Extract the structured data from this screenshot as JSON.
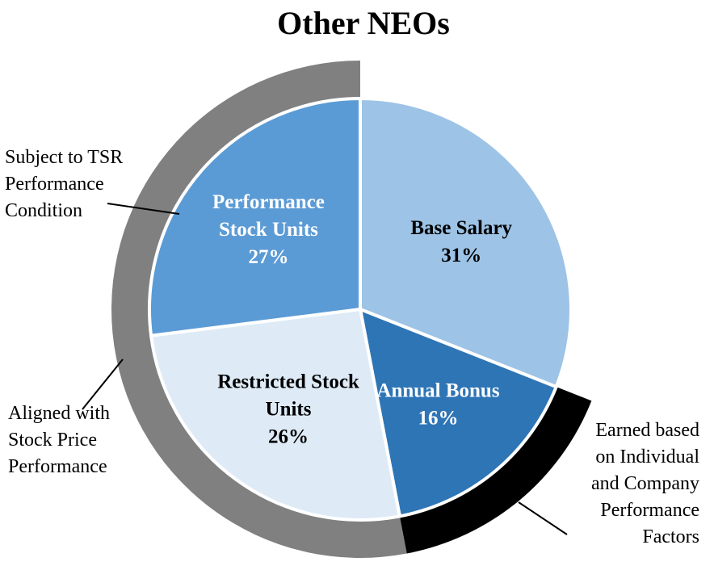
{
  "chart_data": {
    "type": "pie",
    "title": "Other NEOs",
    "slices": [
      {
        "label_lines": [
          "Base Salary",
          "31%"
        ],
        "value": 31,
        "color": "#9dc3e6",
        "text_color": "#000000"
      },
      {
        "label_lines": [
          "Annual Bonus",
          "16%"
        ],
        "value": 16,
        "color": "#2e75b6",
        "text_color": "#ffffff"
      },
      {
        "label_lines": [
          "Restricted Stock",
          "Units",
          "26%"
        ],
        "value": 26,
        "color": "#deebf7",
        "text_color": "#000000"
      },
      {
        "label_lines": [
          "Performance",
          "Stock Units",
          "27%"
        ],
        "value": 27,
        "color": "#5b9bd5",
        "text_color": "#ffffff"
      }
    ],
    "rings": [
      {
        "covers": [
          "Restricted Stock",
          "Performance Stock Units"
        ],
        "color": "#808080"
      },
      {
        "covers": [
          "Annual Bonus"
        ],
        "color": "#000000"
      }
    ],
    "annotations": [
      {
        "lines": [
          "Subject to TSR",
          "Performance",
          "Condition"
        ]
      },
      {
        "lines": [
          "Aligned with",
          "Stock Price",
          "Performance"
        ]
      },
      {
        "lines": [
          "Earned based",
          "on Individual",
          "and Company",
          "Performance",
          "Factors"
        ]
      }
    ]
  }
}
